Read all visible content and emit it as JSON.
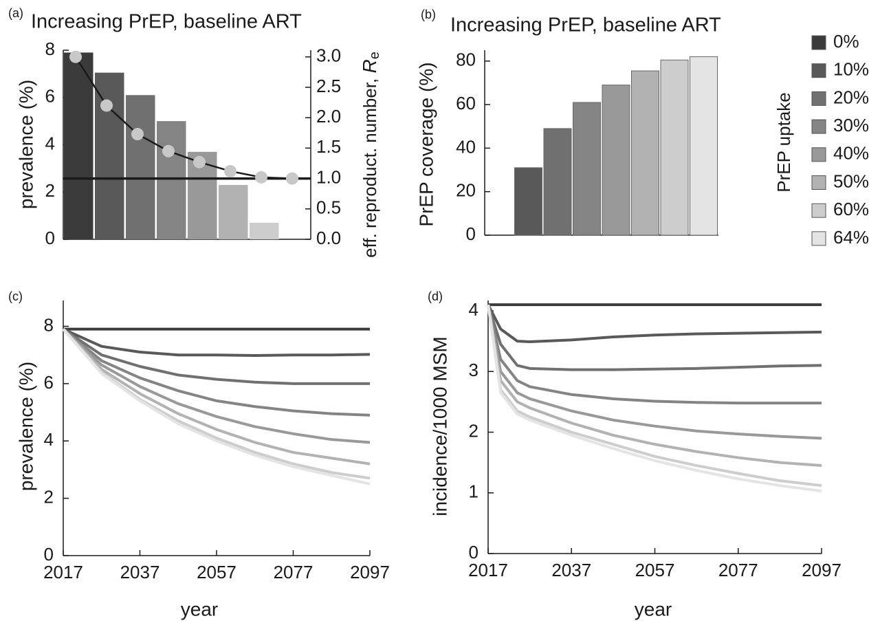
{
  "chart_data": [
    {
      "type": "bar",
      "panel_label": "(a)",
      "title": "Increasing PrEP, baseline ART",
      "ylabel": "prevalence (%)",
      "y2label": {
        "text": "eff. reproduct. number, ",
        "symbol": "R",
        "subscript": "e"
      },
      "values": [
        7.9,
        7.05,
        6.1,
        5.0,
        3.7,
        2.3,
        0.7,
        0
      ],
      "colors": [
        "#3b3b3b",
        "#595959",
        "#707070",
        "#848484",
        "#999999",
        "#b2b2b2",
        "#cdcdcd",
        "#e4e4e4"
      ],
      "ylim": [
        0,
        8
      ],
      "yticks": [
        0,
        2,
        4,
        6,
        8
      ],
      "y2lim": [
        0,
        3.11
      ],
      "y2ticks": [
        {
          "value": 0,
          "label": "0.0"
        },
        {
          "value": 0.5,
          "label": "0.5"
        },
        {
          "value": 1,
          "label": "1.0"
        },
        {
          "value": 1.5,
          "label": "1.5"
        },
        {
          "value": 2,
          "label": "2.0"
        },
        {
          "value": 2.5,
          "label": "2.5"
        },
        {
          "value": 3,
          "label": "3.0"
        }
      ],
      "line": {
        "axis": "y2",
        "values": [
          3.0,
          2.2,
          1.73,
          1.45,
          1.27,
          1.12,
          1.02,
          1.0
        ],
        "color": "#1a1a1a",
        "marker_color": "#c8c8c8"
      },
      "reference_line": {
        "axis": "y2",
        "value": 1.0,
        "color": "#1a1a1a"
      }
    },
    {
      "type": "bar",
      "panel_label": "(b)",
      "title": "Increasing PrEP, baseline ART",
      "ylabel": "PrEP coverage (%)",
      "categories": [
        "0%",
        "10%",
        "20%",
        "30%",
        "40%",
        "50%",
        "60%",
        "64%"
      ],
      "values": [
        0,
        31,
        49,
        61,
        69,
        75.5,
        80.5,
        82
      ],
      "colors": [
        "#3b3b3b",
        "#595959",
        "#707070",
        "#848484",
        "#999999",
        "#b2b2b2",
        "#cdcdcd",
        "#e4e4e4"
      ],
      "ylim": [
        0,
        85
      ],
      "yticks": [
        0,
        20,
        40,
        60,
        80
      ],
      "legend_title": "PrEP uptake"
    },
    {
      "type": "line",
      "panel_label": "(c)",
      "xlabel": "year",
      "ylabel": "prevalence (%)",
      "x": [
        2017,
        2027,
        2037,
        2047,
        2057,
        2067,
        2077,
        2087,
        2097
      ],
      "xlim": [
        2017,
        2097
      ],
      "xticks": [
        2017,
        2037,
        2057,
        2077,
        2097
      ],
      "ylim": [
        0,
        8.9
      ],
      "yticks": [
        0,
        2,
        4,
        6,
        8
      ],
      "series": [
        {
          "color": "#3b3b3b",
          "values": [
            7.9,
            7.9,
            7.9,
            7.9,
            7.9,
            7.9,
            7.9,
            7.9,
            7.9
          ]
        },
        {
          "color": "#595959",
          "values": [
            7.9,
            7.3,
            7.1,
            7.0,
            7.0,
            6.98,
            7.0,
            7.0,
            7.02
          ]
        },
        {
          "color": "#707070",
          "values": [
            7.9,
            7.0,
            6.6,
            6.3,
            6.15,
            6.05,
            6.0,
            6.0,
            6.0
          ]
        },
        {
          "color": "#848484",
          "values": [
            7.9,
            6.8,
            6.2,
            5.75,
            5.4,
            5.2,
            5.05,
            4.95,
            4.9
          ]
        },
        {
          "color": "#999999",
          "values": [
            7.9,
            6.65,
            5.9,
            5.3,
            4.85,
            4.5,
            4.25,
            4.05,
            3.95
          ]
        },
        {
          "color": "#b2b2b2",
          "values": [
            7.9,
            6.5,
            5.65,
            4.95,
            4.4,
            3.95,
            3.6,
            3.4,
            3.2
          ]
        },
        {
          "color": "#cdcdcd",
          "values": [
            7.9,
            6.4,
            5.45,
            4.7,
            4.1,
            3.6,
            3.2,
            2.9,
            2.7
          ]
        },
        {
          "color": "#e4e4e4",
          "values": [
            7.9,
            6.35,
            5.4,
            4.6,
            4.0,
            3.5,
            3.1,
            2.8,
            2.5
          ]
        }
      ]
    },
    {
      "type": "line",
      "panel_label": "(d)",
      "xlabel": "year",
      "ylabel": "incidence/1000 MSM",
      "x": [
        2017,
        2020,
        2024,
        2027,
        2037,
        2047,
        2057,
        2067,
        2077,
        2087,
        2097
      ],
      "xlim": [
        2017,
        2097
      ],
      "xticks": [
        2017,
        2037,
        2057,
        2077,
        2097
      ],
      "ylim": [
        0,
        4.17
      ],
      "yticks": [
        0,
        1,
        2,
        3,
        4
      ],
      "series": [
        {
          "color": "#3b3b3b",
          "values": [
            4.1,
            4.1,
            4.1,
            4.1,
            4.1,
            4.1,
            4.1,
            4.1,
            4.1,
            4.1,
            4.1
          ]
        },
        {
          "color": "#595959",
          "values": [
            4.1,
            3.7,
            3.5,
            3.49,
            3.52,
            3.57,
            3.6,
            3.62,
            3.63,
            3.64,
            3.65
          ]
        },
        {
          "color": "#707070",
          "values": [
            4.1,
            3.45,
            3.1,
            3.05,
            3.03,
            3.03,
            3.04,
            3.05,
            3.07,
            3.09,
            3.1
          ]
        },
        {
          "color": "#848484",
          "values": [
            4.1,
            3.2,
            2.85,
            2.75,
            2.62,
            2.55,
            2.51,
            2.49,
            2.48,
            2.48,
            2.48
          ]
        },
        {
          "color": "#999999",
          "values": [
            4.1,
            3.0,
            2.65,
            2.55,
            2.35,
            2.2,
            2.1,
            2.02,
            1.97,
            1.93,
            1.9
          ]
        },
        {
          "color": "#b2b2b2",
          "values": [
            4.1,
            2.85,
            2.5,
            2.4,
            2.15,
            1.95,
            1.8,
            1.68,
            1.58,
            1.5,
            1.45
          ]
        },
        {
          "color": "#cdcdcd",
          "values": [
            4.1,
            2.7,
            2.35,
            2.25,
            2.0,
            1.8,
            1.6,
            1.45,
            1.32,
            1.2,
            1.12
          ]
        },
        {
          "color": "#e4e4e4",
          "values": [
            4.1,
            2.65,
            2.3,
            2.2,
            1.95,
            1.73,
            1.53,
            1.37,
            1.23,
            1.12,
            1.03
          ]
        }
      ]
    }
  ]
}
